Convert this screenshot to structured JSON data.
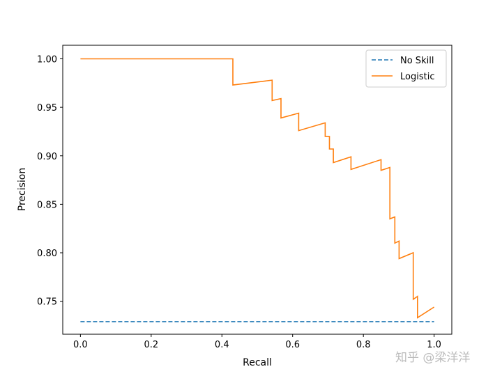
{
  "chart_data": {
    "type": "line",
    "title": "",
    "xlabel": "Recall",
    "ylabel": "Precision",
    "xlim": [
      -0.05,
      1.05
    ],
    "ylim": [
      0.716,
      1.014
    ],
    "xticks": [
      "0.0",
      "0.2",
      "0.4",
      "0.6",
      "0.8",
      "1.0"
    ],
    "yticks": [
      "0.75",
      "0.80",
      "0.85",
      "0.90",
      "0.95",
      "1.00"
    ],
    "grid": false,
    "legend": "top-right",
    "series": [
      {
        "name": "No Skill",
        "style": "dashed",
        "color": "#1f77b4",
        "x": [
          0,
          1
        ],
        "y": [
          0.729,
          0.729
        ]
      },
      {
        "name": "Logistic",
        "style": "solid",
        "color": "#ff7f0e",
        "x": [
          0,
          0.431,
          0.431,
          0.542,
          0.542,
          0.567,
          0.567,
          0.617,
          0.617,
          0.692,
          0.692,
          0.704,
          0.704,
          0.715,
          0.715,
          0.765,
          0.765,
          0.85,
          0.85,
          0.875,
          0.875,
          0.889,
          0.889,
          0.901,
          0.901,
          0.941,
          0.941,
          0.953,
          0.953,
          1.0
        ],
        "y": [
          1.0,
          1.0,
          0.973,
          0.978,
          0.957,
          0.959,
          0.939,
          0.944,
          0.926,
          0.934,
          0.92,
          0.92,
          0.907,
          0.907,
          0.893,
          0.899,
          0.886,
          0.896,
          0.885,
          0.888,
          0.835,
          0.837,
          0.81,
          0.812,
          0.794,
          0.8,
          0.752,
          0.755,
          0.733,
          0.744
        ]
      }
    ]
  },
  "watermark": "知乎 @梁洋洋"
}
